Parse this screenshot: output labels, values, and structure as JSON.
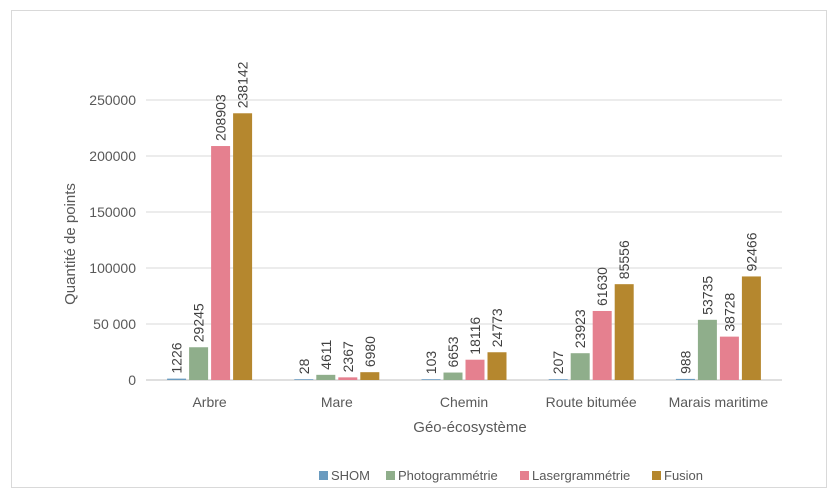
{
  "chart_data": {
    "type": "bar",
    "title": "",
    "xlabel": "Géo-écosystème",
    "ylabel": "Quantité de points",
    "ylim": [
      0,
      250000
    ],
    "yticks": [
      0,
      50000,
      100000,
      150000,
      200000,
      250000
    ],
    "ytick_labels": [
      "0",
      "50 000",
      "100000",
      "150000",
      "200000",
      "250000"
    ],
    "grid": true,
    "legend_position": "bottom",
    "categories": [
      "Arbre",
      "Mare",
      "Chemin",
      "Route bitumée",
      "Marais maritime"
    ],
    "series": [
      {
        "name": "SHOM",
        "color": "#6a9bbf",
        "values": [
          1226,
          28,
          103,
          207,
          988
        ]
      },
      {
        "name": "Photogrammétrie",
        "color": "#8fae8b",
        "values": [
          29245,
          4611,
          6653,
          23923,
          53735
        ]
      },
      {
        "name": "Lasergrammétrie",
        "color": "#e5808f",
        "values": [
          208903,
          2367,
          18116,
          61630,
          38728
        ]
      },
      {
        "name": "Fusion",
        "color": "#b5872e",
        "values": [
          238142,
          6980,
          24773,
          85556,
          92466
        ]
      }
    ]
  }
}
